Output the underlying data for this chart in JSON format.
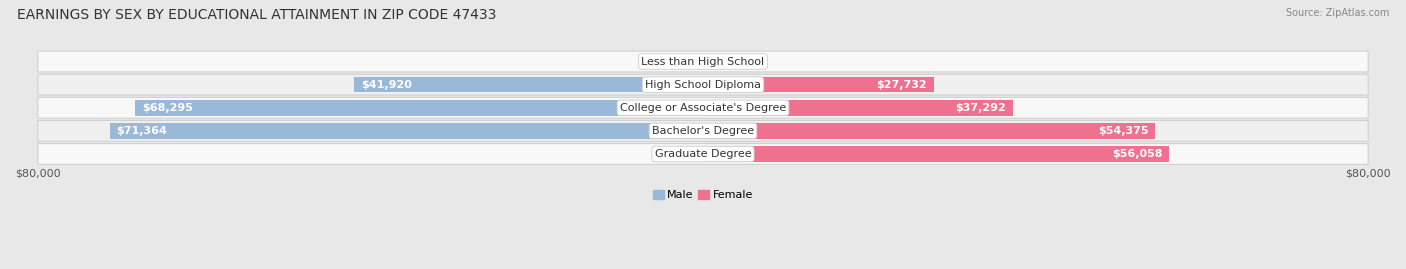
{
  "title": "EARNINGS BY SEX BY EDUCATIONAL ATTAINMENT IN ZIP CODE 47433",
  "source": "Source: ZipAtlas.com",
  "categories": [
    "Less than High School",
    "High School Diploma",
    "College or Associate's Degree",
    "Bachelor's Degree",
    "Graduate Degree"
  ],
  "male_values": [
    0,
    41920,
    68295,
    71364,
    0
  ],
  "female_values": [
    0,
    27732,
    37292,
    54375,
    56058
  ],
  "male_color": "#9ab8d8",
  "female_color": "#f07090",
  "male_label": "Male",
  "female_label": "Female",
  "axis_max": 80000,
  "bg_color": "#e8e8e8",
  "row_light_color": "#f5f5f5",
  "row_dark_color": "#ebebeb",
  "title_fontsize": 10,
  "label_fontsize": 8,
  "tick_fontsize": 8,
  "legend_fontsize": 8,
  "value_label_inside_color": "#ffffff",
  "value_label_outside_color": "#555555"
}
